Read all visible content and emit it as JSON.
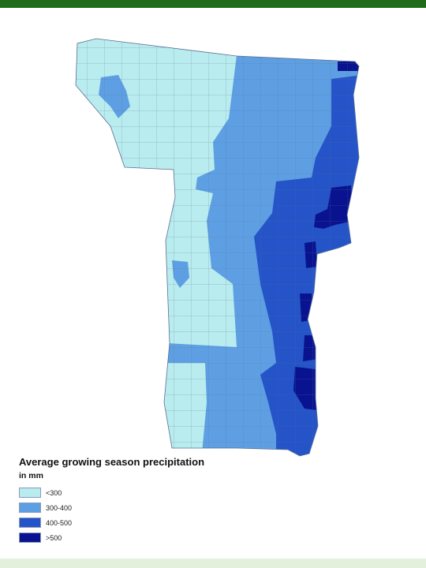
{
  "legend": {
    "title": "Average growing season precipitation",
    "subtitle": "in mm",
    "items": [
      {
        "label": "<300",
        "color": "#b9ecee"
      },
      {
        "label": "300-400",
        "color": "#5e9fe3"
      },
      {
        "label": "400-500",
        "color": "#2554c9"
      },
      {
        "label": ">500",
        "color": "#0a138f"
      }
    ]
  },
  "colors": {
    "header_bar": "#1f6b1a",
    "footer_bar": "#e3f0dc",
    "county_border": "#5a6f92"
  }
}
